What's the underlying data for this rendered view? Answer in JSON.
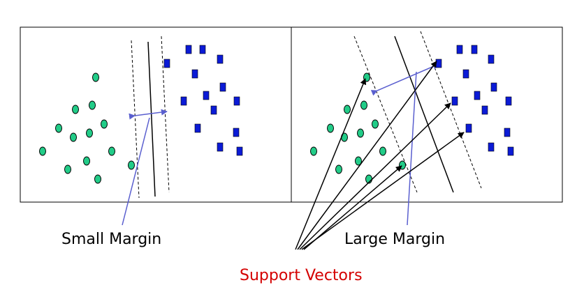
{
  "labels": {
    "left": "Small Margin",
    "right": "Large Margin",
    "bottom": "Support Vectors"
  },
  "colors": {
    "positive_class": "#22cc88",
    "negative_class": "#0b1bd6",
    "annotation_arrow": "#5a5fcf",
    "support_vectors_label": "#d40000",
    "text": "#000000",
    "lines": "#000000"
  },
  "legend_semantics": {
    "left_panel": "small-margin separator",
    "right_panel": "large-margin separator"
  }
}
